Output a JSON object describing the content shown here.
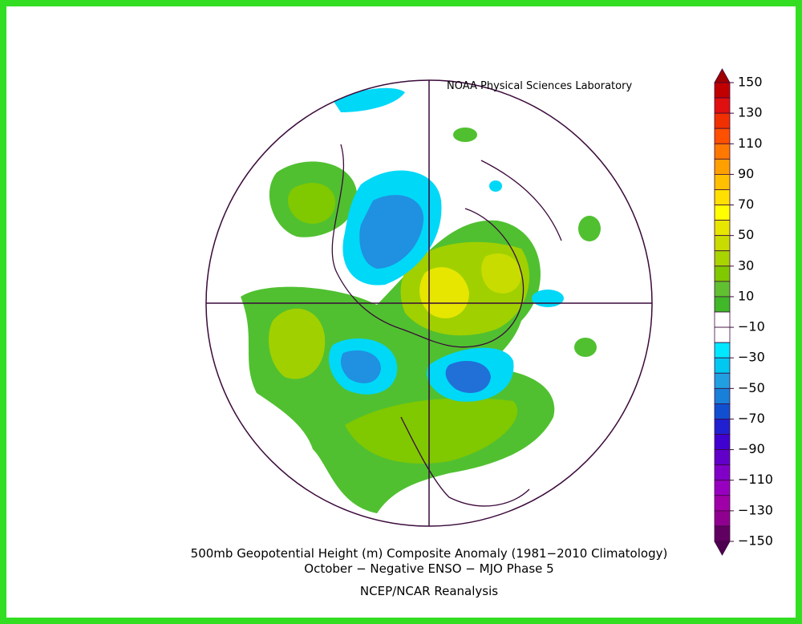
{
  "header": {
    "title": "NOAA Physical Sciences Laboratory"
  },
  "colorbar": {
    "labels": [
      "150",
      "130",
      "110",
      "90",
      "70",
      "50",
      "30",
      "10",
      "−10",
      "−30",
      "−50",
      "−70",
      "−90",
      "−110",
      "−130",
      "−150"
    ]
  },
  "caption": {
    "lines": [
      "500mb Geopotential Height (m) Composite Anomaly (1981−2010 Climatology)",
      "October − Negative ENSO − MJO Phase 5",
      "NCEP/NCAR Reanalysis"
    ]
  }
}
